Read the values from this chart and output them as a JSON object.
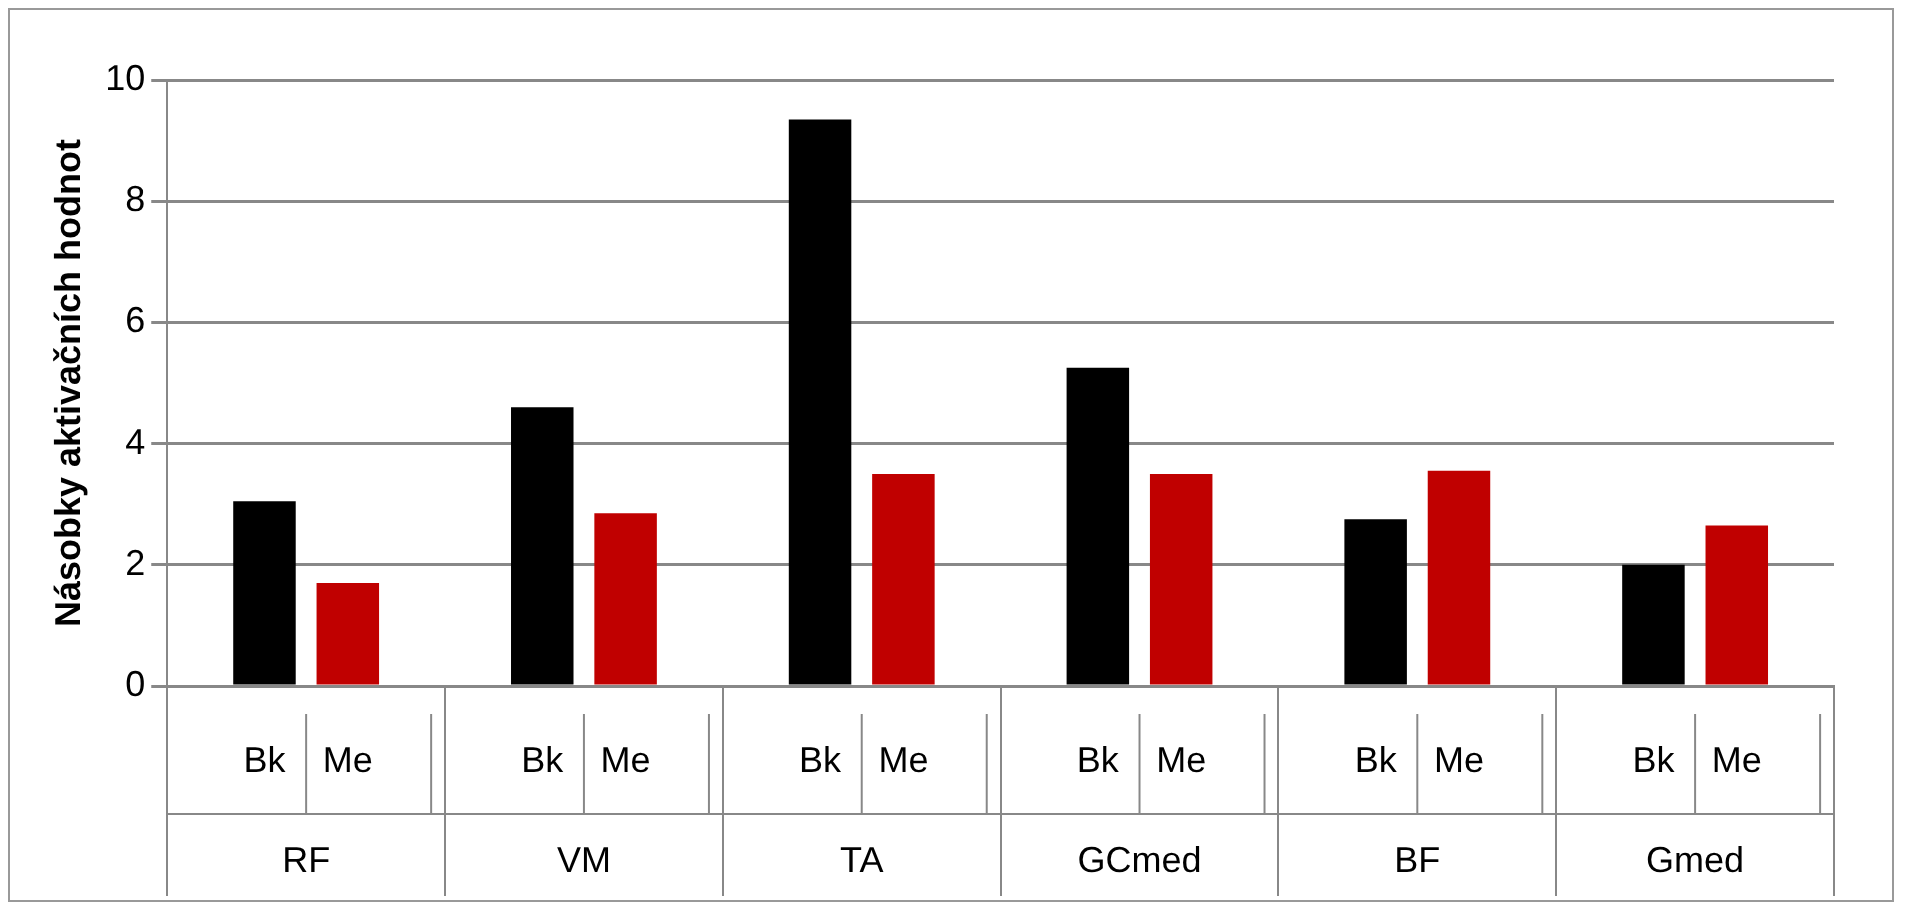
{
  "chart_data": {
    "type": "bar",
    "ylabel": "Násobky aktivačních hodnot",
    "categories": [
      "RF",
      "VM",
      "TA",
      "GCmed",
      "BF",
      "Gmed"
    ],
    "series": [
      {
        "name": "Bk",
        "color": "#000000",
        "values": [
          3.05,
          4.6,
          9.35,
          5.25,
          2.75,
          2.0
        ]
      },
      {
        "name": "Me",
        "color": "#c00000",
        "values": [
          1.7,
          2.85,
          3.5,
          3.5,
          3.55,
          2.65
        ]
      }
    ],
    "ylim": [
      0,
      10
    ],
    "yticks": [
      0,
      2,
      4,
      6,
      8,
      10
    ],
    "grid": "y",
    "legend": false
  }
}
